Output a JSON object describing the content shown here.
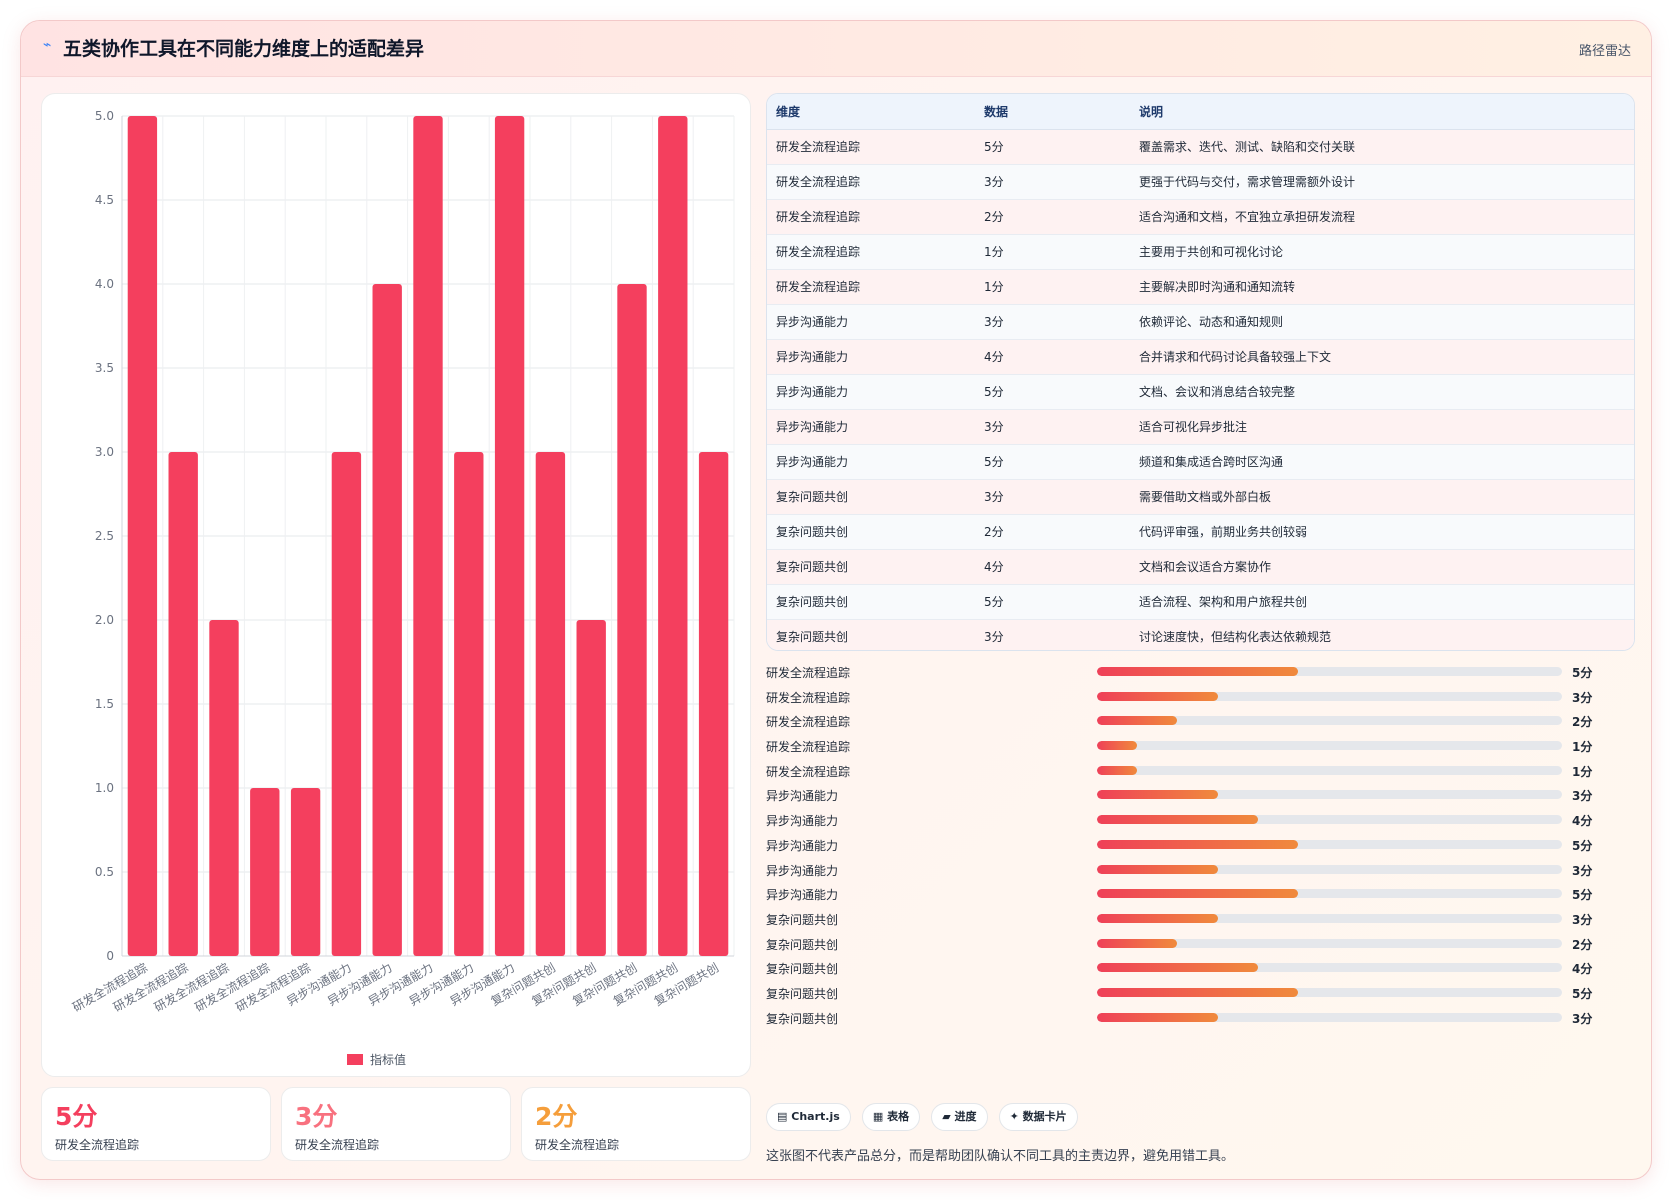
{
  "header": {
    "icon": "sparkline-icon",
    "title": "五类协作工具在不同能力维度上的适配差异",
    "route_label": "路径雷达"
  },
  "chart_data": {
    "type": "bar",
    "categories": [
      "研发全流程追踪",
      "研发全流程追踪",
      "研发全流程追踪",
      "研发全流程追踪",
      "研发全流程追踪",
      "异步沟通能力",
      "异步沟通能力",
      "异步沟通能力",
      "异步沟通能力",
      "异步沟通能力",
      "复杂问题共创",
      "复杂问题共创",
      "复杂问题共创",
      "复杂问题共创",
      "复杂问题共创"
    ],
    "series": [
      {
        "name": "指标值",
        "values": [
          5,
          3,
          2,
          1,
          1,
          3,
          4,
          5,
          3,
          5,
          3,
          2,
          4,
          5,
          3
        ],
        "color": "#f43f5e"
      }
    ],
    "ylim": [
      0,
      5
    ],
    "yticks": [
      "0",
      "0.5",
      "1.0",
      "1.5",
      "2.0",
      "2.5",
      "3.0",
      "3.5",
      "4.0",
      "4.5",
      "5.0"
    ],
    "grid": true,
    "legend": "bottom"
  },
  "table": {
    "headers": [
      "维度",
      "数据",
      "说明"
    ],
    "rows": [
      [
        "研发全流程追踪",
        "5分",
        "覆盖需求、迭代、测试、缺陷和交付关联"
      ],
      [
        "研发全流程追踪",
        "3分",
        "更强于代码与交付，需求管理需额外设计"
      ],
      [
        "研发全流程追踪",
        "2分",
        "适合沟通和文档，不宜独立承担研发流程"
      ],
      [
        "研发全流程追踪",
        "1分",
        "主要用于共创和可视化讨论"
      ],
      [
        "研发全流程追踪",
        "1分",
        "主要解决即时沟通和通知流转"
      ],
      [
        "异步沟通能力",
        "3分",
        "依赖评论、动态和通知规则"
      ],
      [
        "异步沟通能力",
        "4分",
        "合并请求和代码讨论具备较强上下文"
      ],
      [
        "异步沟通能力",
        "5分",
        "文档、会议和消息结合较完整"
      ],
      [
        "异步沟通能力",
        "3分",
        "适合可视化异步批注"
      ],
      [
        "异步沟通能力",
        "5分",
        "频道和集成适合跨时区沟通"
      ],
      [
        "复杂问题共创",
        "3分",
        "需要借助文档或外部白板"
      ],
      [
        "复杂问题共创",
        "2分",
        "代码评审强，前期业务共创较弱"
      ],
      [
        "复杂问题共创",
        "4分",
        "文档和会议适合方案协作"
      ],
      [
        "复杂问题共创",
        "5分",
        "适合流程、架构和用户旅程共创"
      ],
      [
        "复杂问题共创",
        "3分",
        "讨论速度快，但结构化表达依赖规范"
      ]
    ]
  },
  "progress": {
    "max": 5,
    "items": [
      {
        "label": "研发全流程追踪",
        "value": 5,
        "text": "5分"
      },
      {
        "label": "研发全流程追踪",
        "value": 3,
        "text": "3分"
      },
      {
        "label": "研发全流程追踪",
        "value": 2,
        "text": "2分"
      },
      {
        "label": "研发全流程追踪",
        "value": 1,
        "text": "1分"
      },
      {
        "label": "研发全流程追踪",
        "value": 1,
        "text": "1分"
      },
      {
        "label": "异步沟通能力",
        "value": 3,
        "text": "3分"
      },
      {
        "label": "异步沟通能力",
        "value": 4,
        "text": "4分"
      },
      {
        "label": "异步沟通能力",
        "value": 5,
        "text": "5分"
      },
      {
        "label": "异步沟通能力",
        "value": 3,
        "text": "3分"
      },
      {
        "label": "异步沟通能力",
        "value": 5,
        "text": "5分"
      },
      {
        "label": "复杂问题共创",
        "value": 3,
        "text": "3分"
      },
      {
        "label": "复杂问题共创",
        "value": 2,
        "text": "2分"
      },
      {
        "label": "复杂问题共创",
        "value": 4,
        "text": "4分"
      },
      {
        "label": "复杂问题共创",
        "value": 5,
        "text": "5分"
      },
      {
        "label": "复杂问题共创",
        "value": 3,
        "text": "3分"
      }
    ]
  },
  "kpis": [
    {
      "value": "5分",
      "label": "研发全流程追踪",
      "color": "#f43f5e"
    },
    {
      "value": "3分",
      "label": "研发全流程追踪",
      "color": "#f8717f"
    },
    {
      "value": "2分",
      "label": "研发全流程追踪",
      "color": "#f59e3b"
    }
  ],
  "tags": [
    {
      "icon": "bar-chart-icon",
      "glyph": "▤",
      "label": "Chart.js"
    },
    {
      "icon": "table-icon",
      "glyph": "▦",
      "label": "表格"
    },
    {
      "icon": "progress-icon",
      "glyph": "▰",
      "label": "进度"
    },
    {
      "icon": "sparkle-icon",
      "glyph": "✦",
      "label": "数据卡片"
    }
  ],
  "note": "这张图不代表产品总分，而是帮助团队确认不同工具的主责边界，避免用错工具。"
}
